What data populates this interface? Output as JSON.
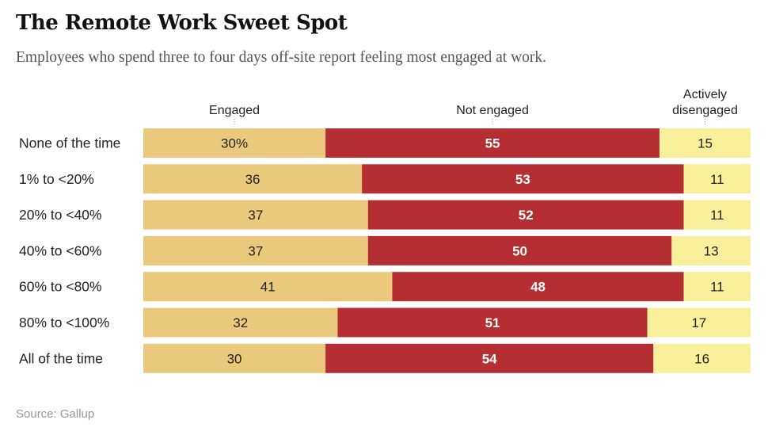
{
  "title": "The Remote Work Sweet Spot",
  "subtitle": "Employees who spend three to four days off-site report feeling most engaged at work.",
  "source": "Source: Gallup",
  "colors": {
    "engaged": "#EBC97C",
    "not_engaged": "#B52F32",
    "disengaged": "#F8F09A",
    "label_dark": "#222222",
    "label_light": "#ffffff"
  },
  "chart_data": {
    "type": "bar",
    "stacked": true,
    "orientation": "horizontal",
    "percent_stacked": true,
    "categories": [
      "None of the time",
      "1% to <20%",
      "20% to <40%",
      "40% to <60%",
      "60% to <80%",
      "80% to <100%",
      "All of the time"
    ],
    "series": [
      {
        "name": "Engaged",
        "labels": [
          "Engaged"
        ],
        "values": [
          30,
          36,
          37,
          37,
          41,
          32,
          30
        ],
        "first_label": "30%"
      },
      {
        "name": "Not engaged",
        "labels": [
          "Not engaged"
        ],
        "values": [
          55,
          53,
          52,
          50,
          48,
          51,
          54
        ]
      },
      {
        "name": "Actively disengaged",
        "labels": [
          "Actively",
          "disengaged"
        ],
        "values": [
          15,
          11,
          11,
          13,
          11,
          17,
          16
        ]
      }
    ],
    "xlim": [
      0,
      100
    ]
  }
}
